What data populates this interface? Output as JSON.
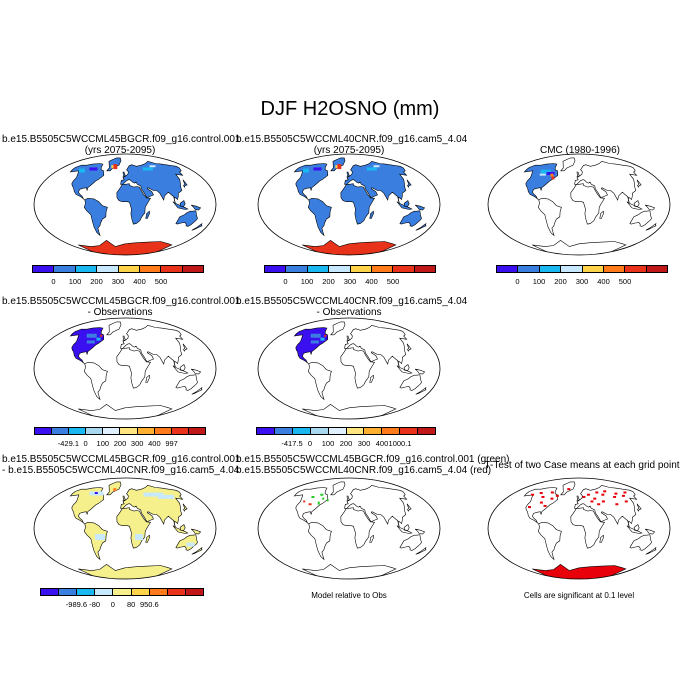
{
  "title": "DJF H2OSNO (mm)",
  "panels": [
    {
      "line1": "b.e15.B5505C5WCCML45BGCR.f09_g16.control.001",
      "line2": "(yrs 2075-2095)"
    },
    {
      "line1": "b.e15.B5505C5WCCML40CNR.f09_g16.cam5_4.04",
      "line2": "(yrs 2075-2095)"
    },
    {
      "line1": "CMC (1980-1996)",
      "line2": ""
    },
    {
      "line1": "b.e15.B5505C5WCCML45BGCR.f09_g16.control.001",
      "line2": "- Observations"
    },
    {
      "line1": "b.e15.B5505C5WCCML40CNR.f09_g16.cam5_4.04",
      "line2": "- Observations"
    },
    {
      "line1": "b.e15.B5505C5WCCML45BGCR.f09_g16.control.001",
      "line2": "- b.e15.B5505C5WCCML40CNR.f09_g16.cam5_4.04"
    },
    {
      "line1": "b.e15.B5505C5WCCML45BGCR.f09_g16.control.001 (green)",
      "line2": "b.e15.B5505C5WCCML40CNR.f09_g16.cam5_4.04 (red)"
    },
    {
      "line1": "T-Test of two Case means at each grid point",
      "line2": ""
    }
  ],
  "captions": {
    "model_relative": "Model relative to Obs",
    "significance": "Cells are significant at 0.1 level"
  },
  "colorbars": {
    "abs": {
      "colors": [
        "#3a10f0",
        "#3a7fe0",
        "#1ab8f0",
        "#c8e8ff",
        "#ffd34a",
        "#ff7a1a",
        "#e8321a",
        "#c01818"
      ],
      "labels": [
        "0",
        "100",
        "200",
        "300",
        "400",
        "500"
      ]
    },
    "diff_obs_1": {
      "colors": [
        "#3a10f0",
        "#3a7fe0",
        "#1ab8f0",
        "#a8d8f0",
        "#e0f0ff",
        "#ffe680",
        "#ffb030",
        "#ff7a1a",
        "#e8321a",
        "#c01818"
      ],
      "labels": [
        "-429.1",
        "0",
        "100",
        "200",
        "300",
        "400",
        "997"
      ]
    },
    "diff_obs_2": {
      "colors": [
        "#3a10f0",
        "#3a7fe0",
        "#1ab8f0",
        "#a8d8f0",
        "#e0f0ff",
        "#ffe680",
        "#ffb030",
        "#ff7a1a",
        "#e8321a",
        "#c01818"
      ],
      "labels": [
        "-417.5",
        "0",
        "100",
        "200",
        "300",
        "400",
        "1000.1"
      ]
    },
    "diff_case": {
      "colors": [
        "#3a10f0",
        "#3a7fe0",
        "#1ab8f0",
        "#c8e8ff",
        "#f5f08c",
        "#ffd34a",
        "#ff7a1a",
        "#e8321a",
        "#c01818"
      ],
      "labels": [
        "-989.6",
        "-80",
        "0",
        "80",
        "950.6"
      ]
    }
  },
  "chart_data": [
    {
      "type": "heatmap",
      "title": "b.e15.B5505C5WCCML45BGCR.f09_g16.control.001 (yrs 2075-2095)",
      "land_fill": "#3a7fe0",
      "antarctica_fill": "#e8321a",
      "colorbar": "abs"
    },
    {
      "type": "heatmap",
      "title": "b.e15.B5505C5WCCML40CNR.f09_g16.cam5_4.04 (yrs 2075-2095)",
      "land_fill": "#3a7fe0",
      "antarctica_fill": "#e8321a",
      "colorbar": "abs"
    },
    {
      "type": "heatmap",
      "title": "CMC (1980-1996)",
      "land_fill": "none",
      "north_america_fill": "#3a7fe0",
      "colorbar": "abs"
    },
    {
      "type": "heatmap",
      "title": "b.e15.B5505C5WCCML45BGCR.f09_g16.control.001 - Observations",
      "north_america_fill": "#3a10f0",
      "colorbar": "diff_obs_1"
    },
    {
      "type": "heatmap",
      "title": "b.e15.B5505C5WCCML40CNR.f09_g16.cam5_4.04 - Observations",
      "north_america_fill": "#3a10f0",
      "colorbar": "diff_obs_2"
    },
    {
      "type": "heatmap",
      "title": "b.e15.B5505C5WCCML45BGCR.f09_g16.control.001 - b.e15.B5505C5WCCML40CNR.f09_g16.cam5_4.04",
      "land_fill": "#f5f08c",
      "colorbar": "diff_case"
    },
    {
      "type": "heatmap",
      "title": "Model relative to Obs",
      "marker_colors": [
        "#22cc22",
        "#e8321a"
      ]
    },
    {
      "type": "heatmap",
      "title": "T-Test of two Case means at each grid point",
      "marker_color": "#e8000a",
      "antarctica_fill": "#e8000a"
    }
  ]
}
